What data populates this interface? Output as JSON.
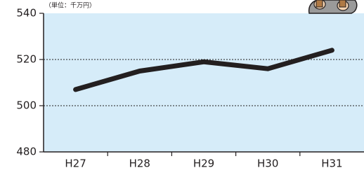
{
  "chart_data": {
    "type": "line",
    "unit_label": "（単位：千万円）",
    "categories": [
      "H27",
      "H28",
      "H29",
      "H30",
      "H31"
    ],
    "values": [
      507,
      515,
      519,
      516,
      524
    ],
    "color": "#231f20",
    "ylim": [
      480,
      540
    ],
    "yticks": [
      480,
      500,
      520,
      540
    ],
    "grid": true
  }
}
